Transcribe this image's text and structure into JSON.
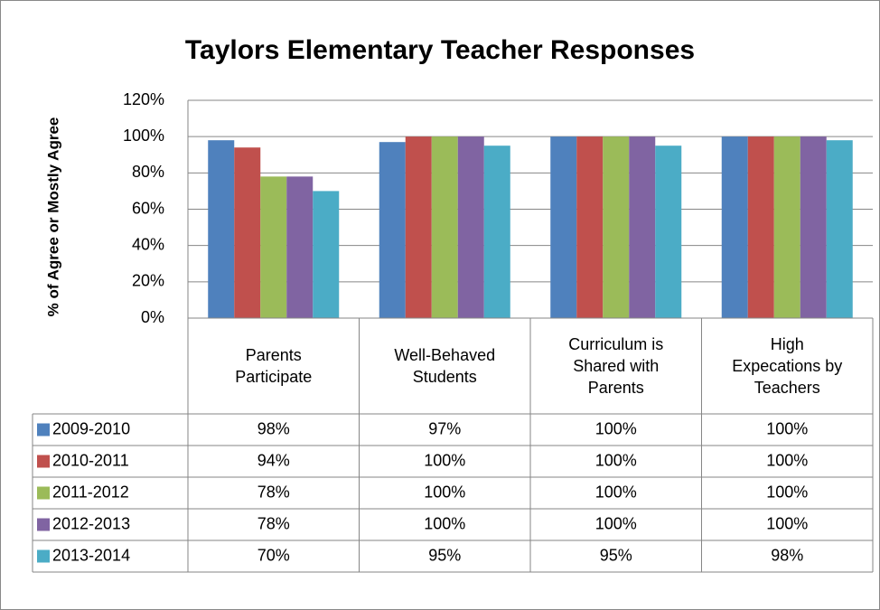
{
  "chart_data": {
    "type": "bar",
    "title": "Taylors Elementary Teacher Responses",
    "y_label": "% of Agree or Mostly Agree",
    "categories": [
      "Parents Participate",
      "Well-Behaved Students",
      "Curriculum is Shared with Parents",
      "High Expecations by Teachers"
    ],
    "series": [
      {
        "name": "2009-2010",
        "color": "#4f81bd",
        "values": [
          98,
          97,
          100,
          100
        ],
        "value_labels": [
          "98%",
          "97%",
          "100%",
          "100%"
        ]
      },
      {
        "name": "2010-2011",
        "color": "#c0504d",
        "values": [
          94,
          100,
          100,
          100
        ],
        "value_labels": [
          "94%",
          "100%",
          "100%",
          "100%"
        ]
      },
      {
        "name": "2011-2012",
        "color": "#9bbb59",
        "values": [
          78,
          100,
          100,
          100
        ],
        "value_labels": [
          "78%",
          "100%",
          "100%",
          "100%"
        ]
      },
      {
        "name": "2012-2013",
        "color": "#8064a2",
        "values": [
          78,
          100,
          100,
          100
        ],
        "value_labels": [
          "78%",
          "100%",
          "100%",
          "100%"
        ]
      },
      {
        "name": "2013-2014",
        "color": "#4bacc6",
        "values": [
          70,
          95,
          95,
          98
        ],
        "value_labels": [
          "70%",
          "95%",
          "95%",
          "98%"
        ]
      }
    ],
    "ylim": [
      0,
      120
    ],
    "yticks": [
      {
        "value": 0,
        "label": "0%"
      },
      {
        "value": 20,
        "label": "20%"
      },
      {
        "value": 40,
        "label": "40%"
      },
      {
        "value": 60,
        "label": "60%"
      },
      {
        "value": 80,
        "label": "80%"
      },
      {
        "value": 100,
        "label": "100%"
      },
      {
        "value": 120,
        "label": "120%"
      }
    ],
    "grid": true
  }
}
